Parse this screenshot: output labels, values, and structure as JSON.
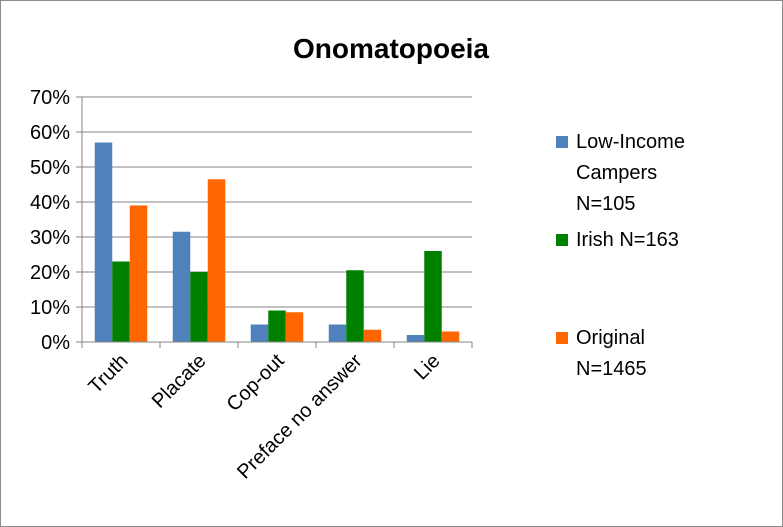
{
  "chart_data": {
    "type": "bar",
    "title": "Onomatopoeia",
    "categories": [
      "Truth",
      "Placate",
      "Cop-out",
      "Preface no answer",
      "Lie"
    ],
    "series": [
      {
        "name": "Low-Income Campers N=105",
        "legend_lines": [
          "Low-Income",
          "Campers",
          "N=105"
        ],
        "color": "#4f81bd",
        "values": [
          57,
          31.5,
          5,
          5,
          2
        ]
      },
      {
        "name": "Irish N=163",
        "legend_lines": [
          "Irish N=163"
        ],
        "color": "#008000",
        "values": [
          23,
          20,
          9,
          20.5,
          26
        ]
      },
      {
        "name": "Original N=1465",
        "legend_lines": [
          "Original",
          "N=1465"
        ],
        "color": "#ff6600",
        "values": [
          39,
          46.5,
          8.5,
          3.5,
          3
        ]
      }
    ],
    "yticks": [
      "0%",
      "10%",
      "20%",
      "30%",
      "40%",
      "50%",
      "60%",
      "70%"
    ],
    "ylim": [
      0,
      70
    ],
    "grid": true,
    "legend_position": "right",
    "xlabel": "",
    "ylabel": ""
  }
}
